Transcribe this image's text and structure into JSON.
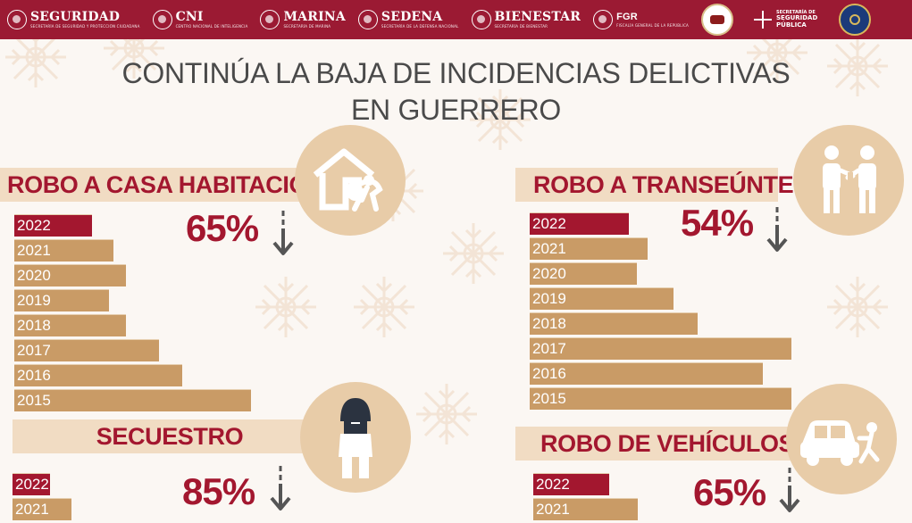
{
  "header": {
    "logos": [
      {
        "name": "SEGURIDAD",
        "sub": "SECRETARÍA DE SEGURIDAD Y PROTECCIÓN CIUDADANA"
      },
      {
        "name": "CNI",
        "sub": "CENTRO NACIONAL DE INTELIGENCIA"
      },
      {
        "name": "MARINA",
        "sub": "SECRETARÍA DE MARINA"
      },
      {
        "name": "SEDENA",
        "sub": "SECRETARÍA DE LA DEFENSA NACIONAL"
      },
      {
        "name": "BIENESTAR",
        "sub": "SECRETARÍA DE BIENESTAR"
      },
      {
        "name": "FGR",
        "sub": "FISCALÍA GENERAL DE LA REPÚBLICA"
      }
    ],
    "state_secretariat": {
      "line1": "SECRETARÍA DE",
      "line2": "SEGURIDAD",
      "line3": "PÚBLICA"
    }
  },
  "title": {
    "line1": "CONTINÚA LA BAJA DE INCIDENCIAS DELICTIVAS",
    "line2": "EN GUERRERO"
  },
  "colors": {
    "header": "#9b1a33",
    "accent_red": "#a3172f",
    "bar_tan": "#c99b66",
    "banner_beige": "#f1dcc3",
    "circle_beige": "#e8cca8",
    "arrow_gray": "#555555"
  },
  "panels": {
    "casa": {
      "label": "ROBO A CASA HABITACIÓN",
      "percent": "65%",
      "icon": "house-burglar-icon",
      "bars": [
        {
          "year": "2022",
          "value": 0.33
        },
        {
          "year": "2021",
          "value": 0.42
        },
        {
          "year": "2020",
          "value": 0.47
        },
        {
          "year": "2019",
          "value": 0.4
        },
        {
          "year": "2018",
          "value": 0.47
        },
        {
          "year": "2017",
          "value": 0.61
        },
        {
          "year": "2016",
          "value": 0.71
        },
        {
          "year": "2015",
          "value": 1.0
        }
      ]
    },
    "transeunte": {
      "label": "ROBO A TRANSEÚNTE",
      "percent": "54%",
      "icon": "pedestrian-robbery-icon",
      "bars": [
        {
          "year": "2022",
          "value": 0.38
        },
        {
          "year": "2021",
          "value": 0.45
        },
        {
          "year": "2020",
          "value": 0.41
        },
        {
          "year": "2019",
          "value": 0.55
        },
        {
          "year": "2018",
          "value": 0.64
        },
        {
          "year": "2017",
          "value": 1.0
        },
        {
          "year": "2016",
          "value": 0.89
        },
        {
          "year": "2015",
          "value": 1.0
        }
      ]
    },
    "secuestro": {
      "label": "SECUESTRO",
      "percent": "85%",
      "icon": "hooded-victim-icon",
      "bars": [
        {
          "year": "2022",
          "value": 0.16
        },
        {
          "year": "2021",
          "value": 0.25
        }
      ]
    },
    "vehiculos": {
      "label": "ROBO DE VEHÍCULOS",
      "percent": "65%",
      "icon": "car-thief-icon",
      "bars": [
        {
          "year": "2022",
          "value": 0.29
        },
        {
          "year": "2021",
          "value": 0.4
        }
      ]
    }
  }
}
